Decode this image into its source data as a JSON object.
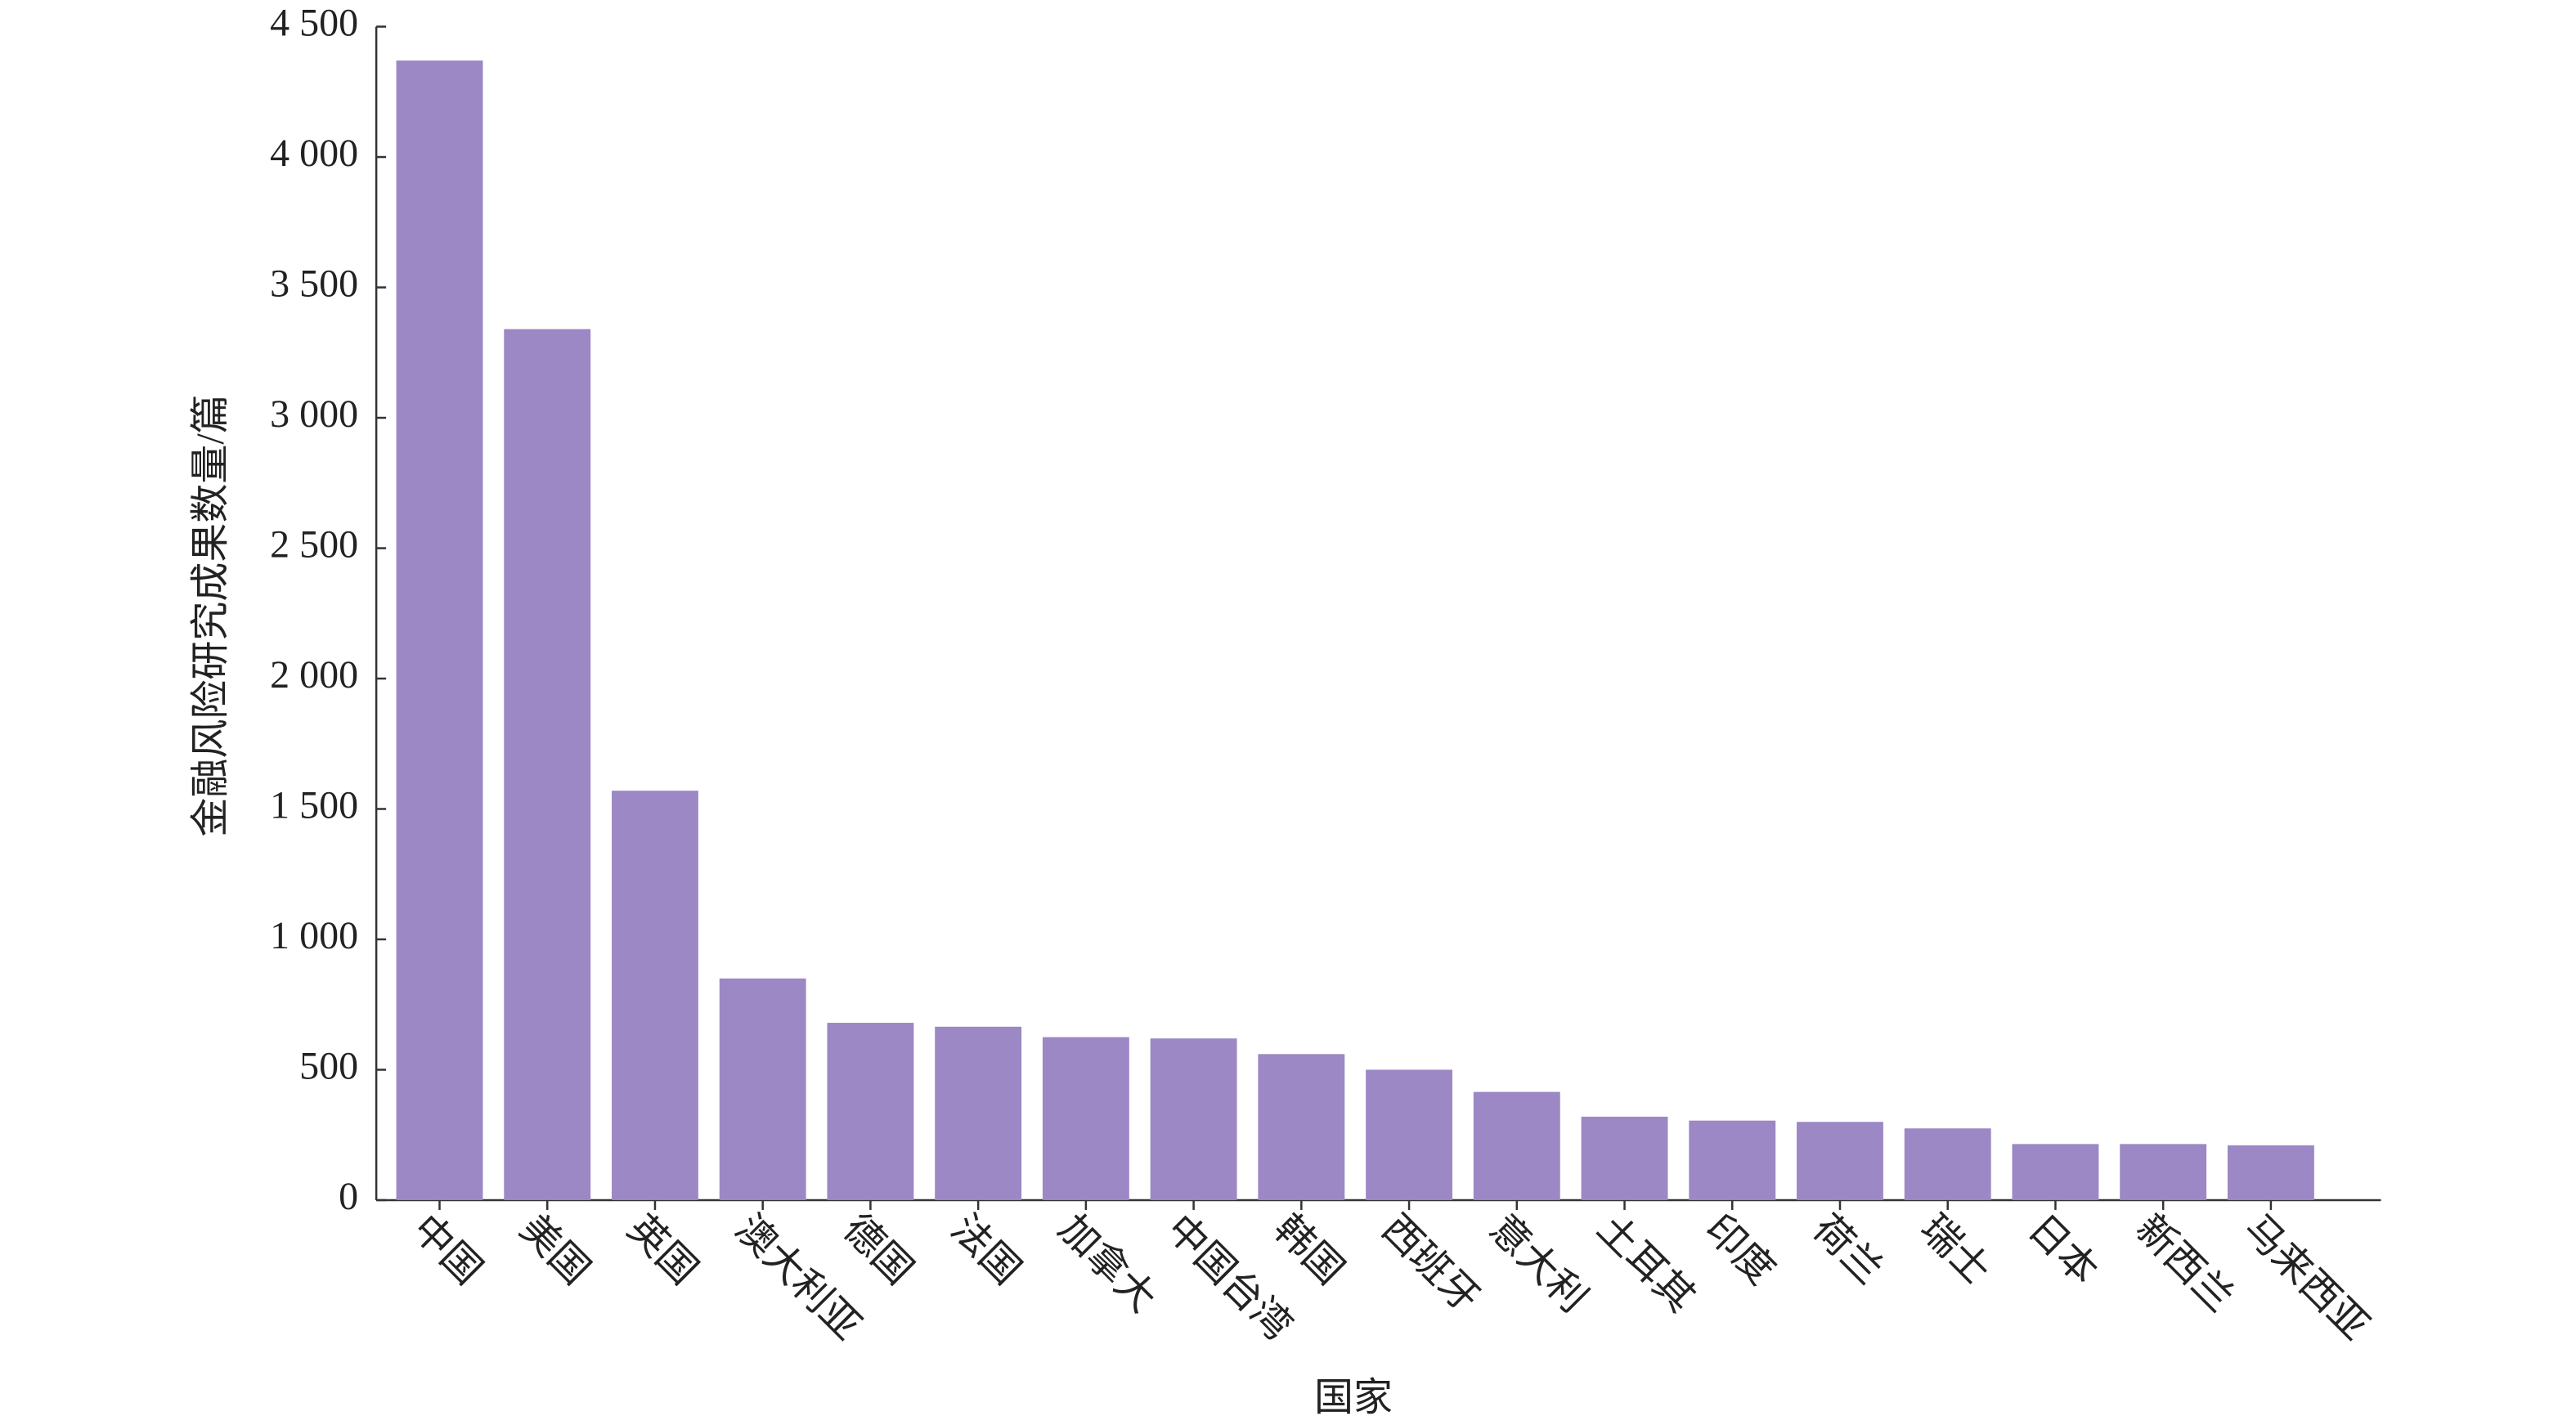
{
  "chart_data": {
    "type": "bar",
    "y_label": "金融风险研究成果数量/篇",
    "x_label": "国家",
    "categories": [
      "中国",
      "美国",
      "英国",
      "澳大利亚",
      "德国",
      "法国",
      "加拿大",
      "中国台湾",
      "韩国",
      "西班牙",
      "意大利",
      "土耳其",
      "印度",
      "荷兰",
      "瑞士",
      "日本",
      "新西兰",
      "马来西亚"
    ],
    "values": [
      4370,
      3340,
      1570,
      850,
      680,
      665,
      625,
      620,
      560,
      500,
      415,
      320,
      305,
      300,
      275,
      215,
      215,
      210
    ],
    "color": "#9b88c4",
    "ylim": [
      0,
      4500
    ],
    "yticks": [
      0,
      500,
      {
        "value": 1000,
        "label": "1 000"
      },
      {
        "value": 1500,
        "label": "1 500"
      },
      {
        "value": 2000,
        "label": "2 000"
      },
      {
        "value": 2500,
        "label": "2 500"
      },
      {
        "value": 3000,
        "label": "3 000"
      },
      {
        "value": 3500,
        "label": "3 500"
      },
      {
        "value": 4000,
        "label": "4 000"
      },
      {
        "value": 4500,
        "label": "4 500"
      }
    ],
    "grid": false
  }
}
